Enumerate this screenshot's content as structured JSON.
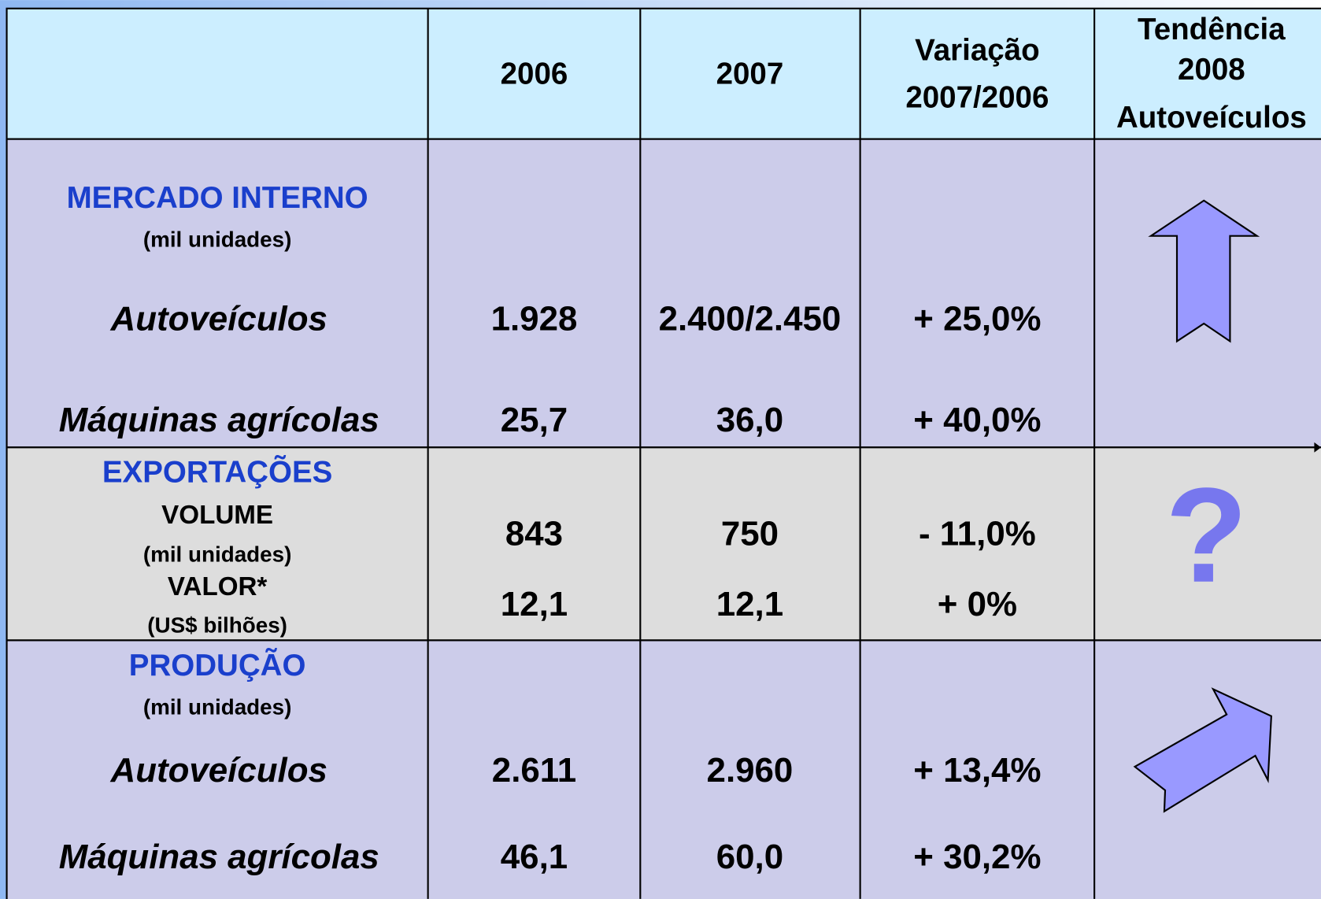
{
  "header": {
    "columns": [
      "2006",
      "2007"
    ],
    "variation": [
      "Variação",
      "2007/2006"
    ],
    "trend": [
      "Tendência",
      "2008",
      "Autoveículos"
    ]
  },
  "sections": [
    {
      "title": "MERCADO INTERNO",
      "unit": "(mil unidades)",
      "rows": [
        {
          "label": "Autoveículos",
          "values": [
            "1.928",
            "2.400/2.450",
            "+ 25,0%"
          ]
        },
        {
          "label": "Máquinas agrícolas",
          "values": [
            "25,7",
            "36,0",
            "+ 40,0%"
          ]
        }
      ]
    },
    {
      "title": "EXPORTAÇÕES",
      "rows": [
        {
          "label": "VOLUME",
          "unit": "(mil unidades)",
          "values": [
            "843",
            "750",
            "- 11,0%"
          ]
        },
        {
          "label": "VALOR*",
          "unit": "(US$ bilhões)",
          "values": [
            "12,1",
            "12,1",
            "+ 0%"
          ]
        }
      ],
      "trend": "?"
    },
    {
      "title": "PRODUÇÃO",
      "unit": "(mil unidades)",
      "rows": [
        {
          "label": "Autoveículos",
          "values": [
            "2.611",
            "2.960",
            "+ 13,4%"
          ]
        },
        {
          "label": "Máquinas agrícolas",
          "values": [
            "46,1",
            "60,0",
            "+ 30,2%"
          ]
        }
      ]
    }
  ]
}
